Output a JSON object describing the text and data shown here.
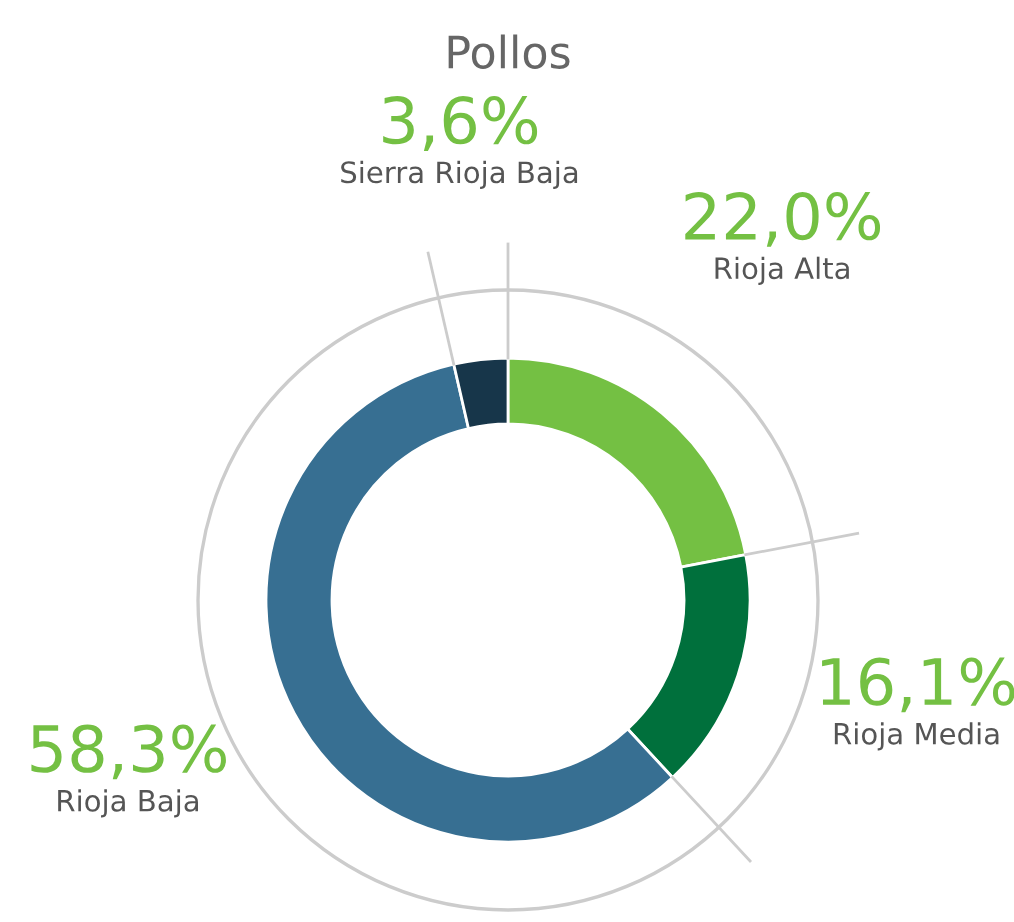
{
  "chart_data": {
    "type": "donut",
    "title": "Pollos",
    "categories": [
      "Rioja Alta",
      "Rioja Media",
      "Rioja Baja",
      "Sierra Rioja Baja"
    ],
    "values": [
      22.0,
      16.1,
      58.3,
      3.6
    ],
    "colors": [
      "#74c043",
      "#00703c",
      "#376f92",
      "#17364a"
    ],
    "value_labels": [
      "22,0%",
      "16,1%",
      "58,3%",
      "3,6%"
    ]
  }
}
